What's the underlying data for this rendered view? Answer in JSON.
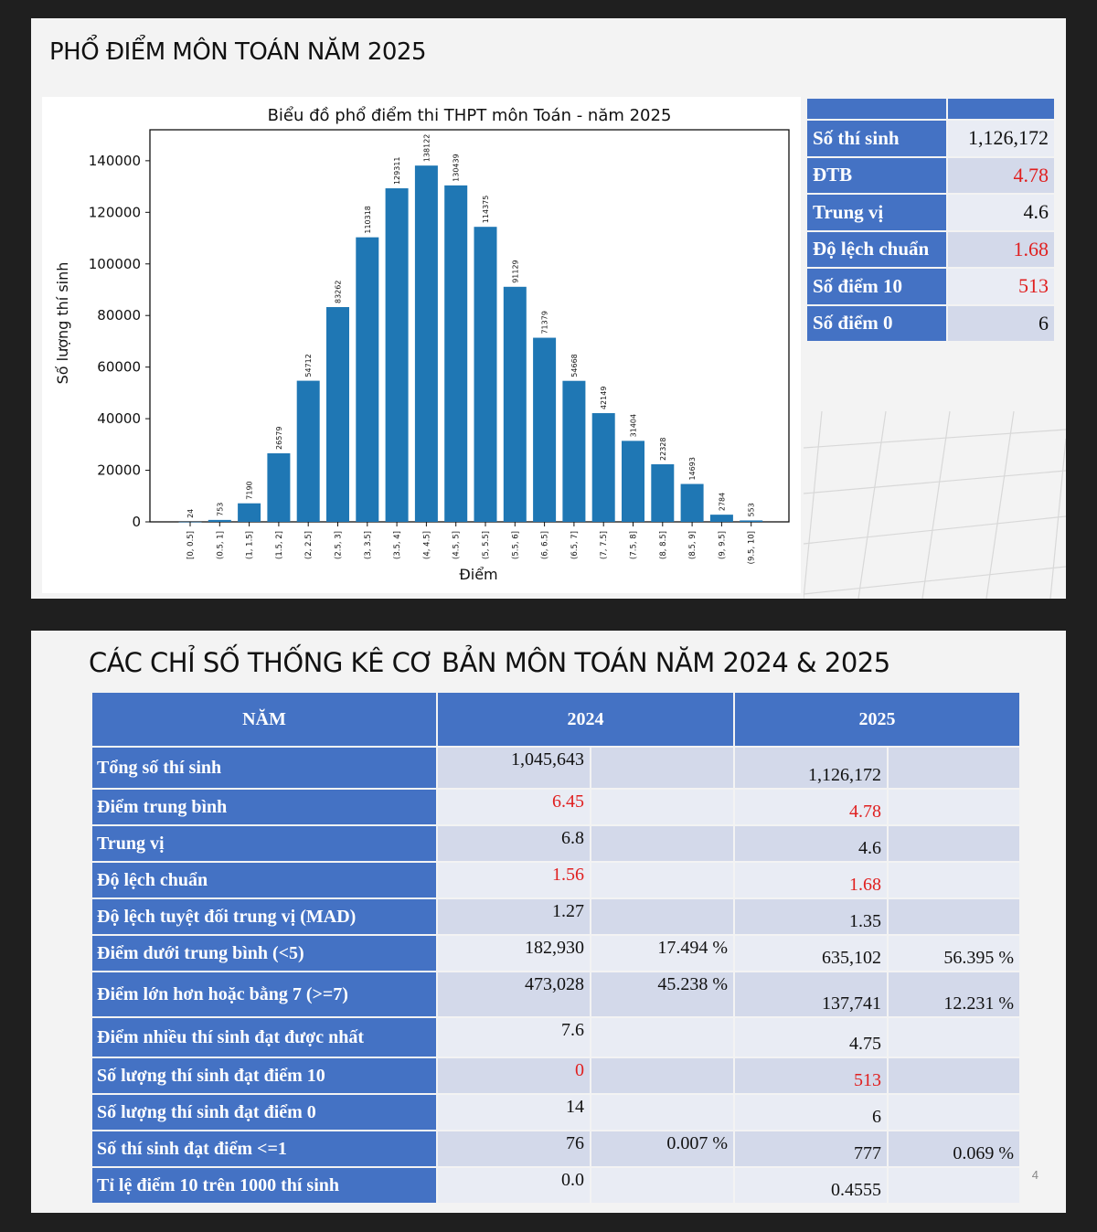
{
  "slide1": {
    "title": "PHỔ ĐIỂM MÔN TOÁN NĂM 2025",
    "stats": [
      {
        "label": "Số thí sinh",
        "value": "1,126,172",
        "highlight": false
      },
      {
        "label": "ĐTB",
        "value": "4.78",
        "highlight": true
      },
      {
        "label": "Trung vị",
        "value": "4.6",
        "highlight": false
      },
      {
        "label": "Độ lệch chuẩn",
        "value": "1.68",
        "highlight": true
      },
      {
        "label": "Số điểm 10",
        "value": "513",
        "highlight": true
      },
      {
        "label": "Số điểm 0",
        "value": "6",
        "highlight": false
      }
    ]
  },
  "chart_data": {
    "type": "bar",
    "title": "Biểu đồ phổ điểm thi THPT môn Toán - năm 2025",
    "xlabel": "Điểm",
    "ylabel": "Số lượng thí sinh",
    "categories": [
      "[0, 0.5]",
      "(0.5, 1]",
      "(1, 1.5]",
      "(1.5, 2]",
      "(2, 2.5]",
      "(2.5, 3]",
      "(3, 3.5]",
      "(3.5, 4]",
      "(4, 4.5]",
      "(4.5, 5]",
      "(5, 5.5]",
      "(5.5, 6]",
      "(6, 6.5]",
      "(6.5, 7]",
      "(7, 7.5]",
      "(7.5, 8]",
      "(8, 8.5]",
      "(8.5, 9]",
      "(9, 9.5]",
      "(9.5, 10]"
    ],
    "values": [
      24,
      753,
      7190,
      26579,
      54712,
      83262,
      110318,
      129311,
      138122,
      130439,
      114375,
      91129,
      71379,
      54668,
      42149,
      31404,
      22328,
      14693,
      2784,
      553
    ],
    "ylim": [
      0,
      152000
    ],
    "yticks": [
      0,
      20000,
      40000,
      60000,
      80000,
      100000,
      120000,
      140000
    ],
    "bar_color": "#1f77b4",
    "grid": false
  },
  "slide2": {
    "title": "CÁC CHỈ SỐ THỐNG KÊ CƠ BẢN MÔN TOÁN NĂM 2024 & 2025",
    "headers": {
      "col0": "NĂM",
      "col1": "2024",
      "col2": "2025"
    },
    "rows": [
      {
        "label": "Tổng số thí sinh",
        "v2024": "1,045,643",
        "p2024": "",
        "v2025": "1,126,172",
        "p2025": "",
        "red2024": false,
        "red2025": false
      },
      {
        "label": "Điểm trung bình",
        "v2024": "6.45",
        "p2024": "",
        "v2025": "4.78",
        "p2025": "",
        "red2024": true,
        "red2025": true
      },
      {
        "label": "Trung vị",
        "v2024": "6.8",
        "p2024": "",
        "v2025": "4.6",
        "p2025": "",
        "red2024": false,
        "red2025": false
      },
      {
        "label": "Độ lệch chuẩn",
        "v2024": "1.56",
        "p2024": "",
        "v2025": "1.68",
        "p2025": "",
        "red2024": true,
        "red2025": true
      },
      {
        "label": "Độ lệch tuyệt đối trung vị (MAD)",
        "v2024": "1.27",
        "p2024": "",
        "v2025": "1.35",
        "p2025": "",
        "red2024": false,
        "red2025": false
      },
      {
        "label": "Điểm dưới trung bình (<5)",
        "v2024": "182,930",
        "p2024": "17.494 %",
        "v2025": "635,102",
        "p2025": "56.395 %",
        "red2024": false,
        "red2025": false
      },
      {
        "label": "Điểm lớn hơn hoặc bằng 7 (>=7)",
        "v2024": "473,028",
        "p2024": "45.238 %",
        "v2025": "137,741",
        "p2025": "12.231 %",
        "red2024": false,
        "red2025": false
      },
      {
        "label": "Điểm nhiều thí sinh đạt được nhất",
        "v2024": "7.6",
        "p2024": "",
        "v2025": "4.75",
        "p2025": "",
        "red2024": false,
        "red2025": false
      },
      {
        "label": "Số lượng thí sinh đạt điểm 10",
        "v2024": "0",
        "p2024": "",
        "v2025": "513",
        "p2025": "",
        "red2024": true,
        "red2025": true
      },
      {
        "label": "Số lượng thí sinh đạt điểm 0",
        "v2024": "14",
        "p2024": "",
        "v2025": "6",
        "p2025": "",
        "red2024": false,
        "red2025": false
      },
      {
        "label": "Số thí sinh đạt điểm <=1",
        "v2024": "76",
        "p2024": "0.007 %",
        "v2025": "777",
        "p2025": "0.069 %",
        "red2024": false,
        "red2025": false
      },
      {
        "label": "Tỉ lệ điểm 10 trên 1000 thí sinh",
        "v2024": "0.0",
        "p2024": "",
        "v2025": "0.4555",
        "p2025": "",
        "red2024": false,
        "red2025": false
      }
    ],
    "page_number": "4"
  }
}
